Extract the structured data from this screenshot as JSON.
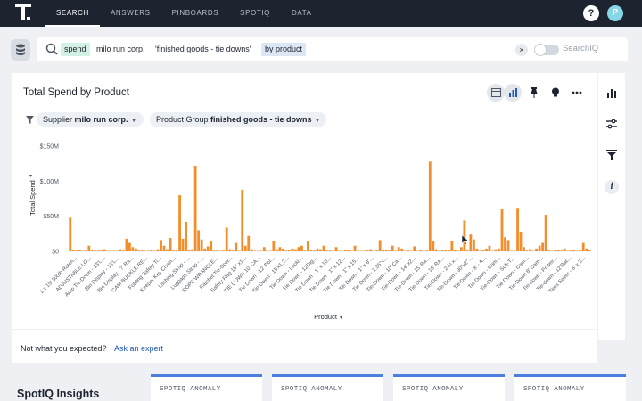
{
  "nav": {
    "items": [
      {
        "label": "SEARCH",
        "active": true
      },
      {
        "label": "ANSWERS"
      },
      {
        "label": "PINBOARDS"
      },
      {
        "label": "SPOTIQ"
      },
      {
        "label": "DATA"
      }
    ],
    "help": "?",
    "avatar": "P"
  },
  "search": {
    "tokens": [
      {
        "text": "spend",
        "style": "green"
      },
      {
        "text": "milo run corp.",
        "style": "plain"
      },
      {
        "text": "'finished goods - tie downs'",
        "style": "plain"
      },
      {
        "text": "by product",
        "style": "blue"
      }
    ],
    "clear_icon": "×",
    "searchiq_label": "SearchIQ"
  },
  "answer": {
    "title": "Total Spend by Product",
    "filters": [
      {
        "name": "Supplier",
        "value": "milo run corp."
      },
      {
        "name": "Product Group",
        "value": "finished goods - tie downs"
      }
    ]
  },
  "footer": {
    "prompt": "Not what you expected?",
    "link": "Ask an expert"
  },
  "insights": {
    "title": "SpotIQ Insights",
    "cards": [
      {
        "label": "SPOTIQ ANOMALY"
      },
      {
        "label": "SPOTIQ ANOMALY"
      },
      {
        "label": "SPOTIQ ANOMALY"
      },
      {
        "label": "SPOTIQ ANOMALY"
      }
    ]
  },
  "colors": {
    "bar": "#f28e2c",
    "accent": "#4a7fe0",
    "nav_bg": "#1d232f"
  },
  "chart_data": {
    "type": "bar",
    "title": "",
    "xlabel": "Product",
    "ylabel": "Total Spend",
    "ylim": [
      0,
      150000000
    ],
    "yticks": [
      "$0",
      "$50M",
      "$100M",
      "$150M"
    ],
    "grid": false,
    "categories_visible": [
      "1 x 15' 300lb Ratch...",
      "ADJUSTABLE LO...",
      "Auto Tie-Down - 13'L...",
      "Bin Display - 13'L...",
      "Bin Display - 7' Ra...",
      "CAM BUCKLE RE...",
      "Folding Safety Ti...",
      "Keeper Key Chain...",
      "Lashing Strap - ...",
      "Luggage Strap - ...",
      "ROPE WRANGLE...",
      "Ratchet Tie-Dow...",
      "Safety Flag 18\" x1...",
      "TIE DOWN 10' CA...",
      "Tie Down - 12' Pol...",
      "Tie Down - 15'x1.2...",
      "Tie Down - Locki...",
      "Tie Down - 12Dig...",
      "Tie Down - 1\" x 10...",
      "Tie Down - 1\" x 12...",
      "Tie Down - 1\" x 15...",
      "Tie Down - 1\" x 8'...",
      "Tie Down - 1.25\"x...",
      "Tie-Down - 10' Ca...",
      "Tie-Down - 14' x2...",
      "Tie-Down - 15' Ra...",
      "Tie-Down - 16' Ra...",
      "Tie-Down - 2-in x...",
      "Tie-Down - 30\"x2\"...",
      "Tie-Down - 8' - A...",
      "Tie-Down - Cam...",
      "Tie-Down - Soft-T...",
      "Tie-Down - Cam...",
      "Tie-Down 8' Cam...",
      "Tie-down - Power...",
      "Tie-down - 12'Rat...",
      "Tires Saver - 6' x 3..."
    ],
    "values": [
      48000000,
      2000000,
      1000000,
      2000000,
      0,
      1000000,
      8000000,
      2000000,
      1000000,
      1000000,
      1000000,
      3000000,
      0,
      0,
      0,
      0,
      3000000,
      1000000,
      18000000,
      12000000,
      6000000,
      4000000,
      1000000,
      1000000,
      0,
      0,
      2000000,
      0,
      3000000,
      16000000,
      8000000,
      3000000,
      19000000,
      1000000,
      1000000,
      80000000,
      18000000,
      42000000,
      2000000,
      3000000,
      122000000,
      30000000,
      17000000,
      4000000,
      7000000,
      14000000,
      1000000,
      1000000,
      0,
      1000000,
      34000000,
      3000000,
      1000000,
      12000000,
      0,
      88000000,
      8000000,
      22000000,
      3000000,
      0,
      0,
      0,
      6000000,
      0,
      0,
      15000000,
      3000000,
      6000000,
      4000000,
      1000000,
      2000000,
      4000000,
      3000000,
      6000000,
      8000000,
      1000000,
      14000000,
      2000000,
      1000000,
      4000000,
      3000000,
      8000000,
      1000000,
      1000000,
      0,
      6000000,
      0,
      0,
      2000000,
      2000000,
      0,
      8000000,
      0,
      0,
      0,
      1000000,
      3000000,
      0,
      1000000,
      16000000,
      2000000,
      2000000,
      1000000,
      8000000,
      0,
      6000000,
      4000000,
      0,
      1000000,
      0,
      7000000,
      0,
      2000000,
      0,
      1000000,
      128000000,
      14000000,
      3000000,
      0,
      2000000,
      2000000,
      2000000,
      14000000,
      2000000,
      0,
      6000000,
      44000000,
      1000000,
      24000000,
      17000000,
      4000000,
      0,
      2000000,
      4000000,
      8000000,
      0,
      3000000,
      4000000,
      60000000,
      20000000,
      16000000,
      0,
      0,
      62000000,
      28000000,
      6000000,
      1000000,
      3000000,
      0,
      4000000,
      8000000,
      12000000,
      52000000,
      1000000,
      0,
      2000000,
      2000000,
      1000000,
      4000000,
      0,
      1000000,
      2000000,
      0,
      1000000,
      12000000,
      4000000,
      2000000
    ]
  }
}
